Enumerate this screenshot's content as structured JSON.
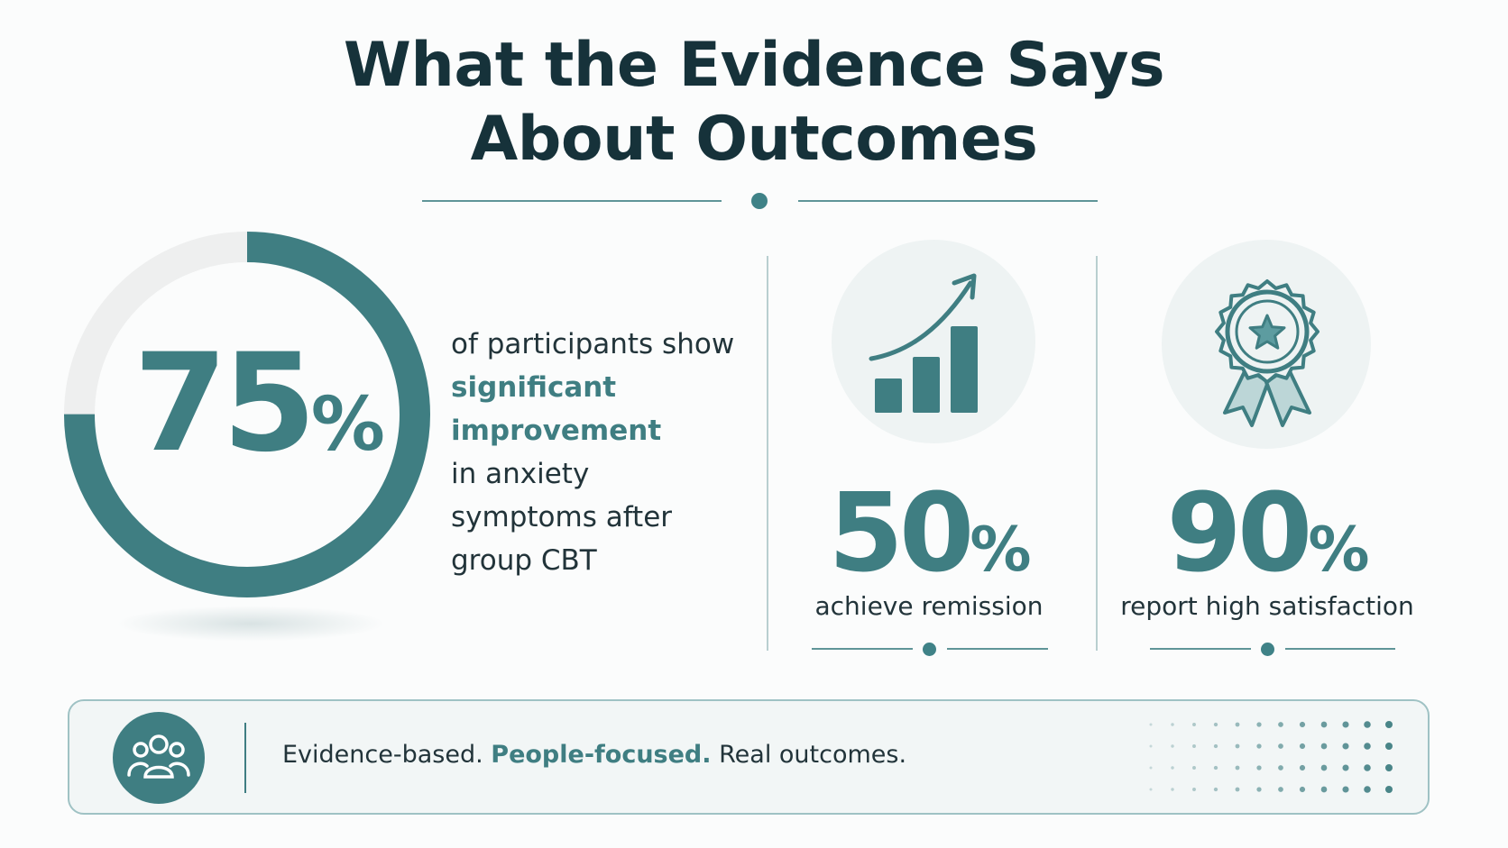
{
  "title": {
    "line1": "What the Evidence Says",
    "line2": "About Outcomes"
  },
  "main_stat": {
    "value": "75",
    "unit": "%",
    "fraction": 0.75,
    "text_line1": "of participants show",
    "highlight_line1": "significant",
    "highlight_line2": "improvement",
    "text_line2": "in anxiety",
    "text_line3": "symptoms after",
    "text_line4": "group CBT"
  },
  "stats": [
    {
      "icon": "bar-chart-growth-icon",
      "value": "50",
      "unit": "%",
      "label": "achieve remission"
    },
    {
      "icon": "award-ribbon-star-icon",
      "value": "90",
      "unit": "%",
      "label": "report high satisfaction"
    }
  ],
  "footer": {
    "icon": "people-group-icon",
    "part1": "Evidence-based.",
    "part2": "People-focused.",
    "part3": "Real outcomes."
  },
  "colors": {
    "accent": "#3f7e82",
    "title": "#16323a",
    "track": "#eeefef",
    "background": "#fbfcfc"
  }
}
